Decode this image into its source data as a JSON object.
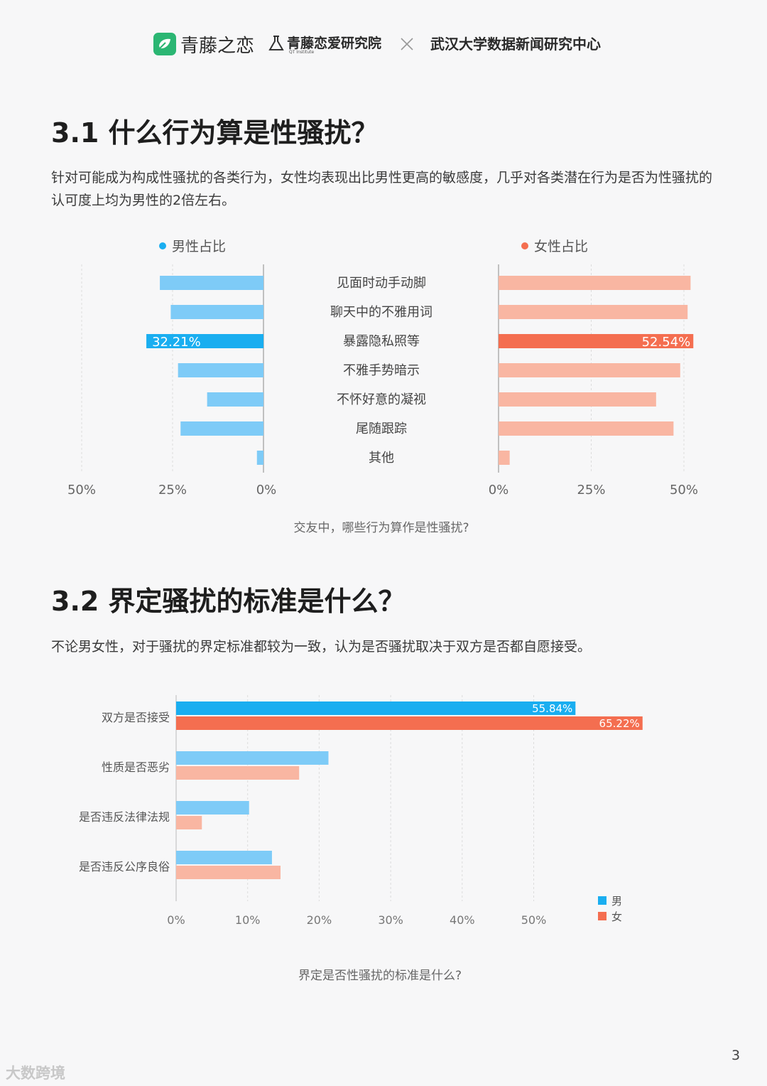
{
  "header": {
    "brand1": "青藤之恋",
    "brand2": "青藤恋爱研究院",
    "brand2_sub": "QT Institute",
    "separator": "×",
    "brand3": "武汉大学数据新闻研究中心"
  },
  "section1": {
    "title": "3.1  什么行为算是性骚扰？",
    "description": "针对可能成为构成性骚扰的各类行为，女性均表现出比男性更高的敏感度，几乎对各类潜在行为是否为性骚扰的认可度上均为男性的2倍左右。"
  },
  "section2": {
    "title": "3.2  界定骚扰的标准是什么？",
    "description": "不论男女性，对于骚扰的界定标准都较为一致，认为是否骚扰取决于双方是否都自愿接受。"
  },
  "colors": {
    "male_light": "#7ecbf7",
    "male_strong": "#1aaef0",
    "female_light": "#f9b6a2",
    "female_strong": "#f46e50"
  },
  "chart_data": [
    {
      "type": "bar",
      "orientation": "butterfly",
      "caption": "交友中，哪些行为算作是性骚扰?",
      "categories": [
        "见面时动手动脚",
        "聊天中的不雅用词",
        "暴露隐私照等",
        "不雅手势暗示",
        "不怀好意的凝视",
        "尾随跟踪",
        "其他"
      ],
      "series": [
        {
          "name": "男性占比",
          "values": [
            28.5,
            25.5,
            32.21,
            23.5,
            15.5,
            22.8,
            1.8
          ]
        },
        {
          "name": "女性占比",
          "values": [
            51.8,
            51.0,
            52.54,
            49.0,
            42.5,
            47.2,
            3.0
          ]
        }
      ],
      "data_labels": [
        {
          "series": "男性占比",
          "category": "暴露隐私照等",
          "text": "32.21%"
        },
        {
          "series": "女性占比",
          "category": "暴露隐私照等",
          "text": "52.54%"
        }
      ],
      "left_ticks": [
        "50%",
        "25%",
        "0%"
      ],
      "right_ticks": [
        "0%",
        "25%",
        "50%"
      ],
      "xlim": [
        0,
        50
      ],
      "highlight_category": "暴露隐私照等"
    },
    {
      "type": "bar",
      "orientation": "horizontal",
      "caption": "界定是否性骚扰的标准是什么?",
      "categories": [
        "双方是否接受",
        "性质是否恶劣",
        "是否违反法律法规",
        "是否违反公序良俗"
      ],
      "series": [
        {
          "name": "男",
          "values": [
            55.84,
            21.3,
            10.2,
            13.4
          ]
        },
        {
          "name": "女",
          "values": [
            65.22,
            17.2,
            3.6,
            14.6
          ]
        }
      ],
      "data_labels": [
        {
          "series": "男",
          "category": "双方是否接受",
          "text": "55.84%"
        },
        {
          "series": "女",
          "category": "双方是否接受",
          "text": "65.22%"
        }
      ],
      "x_ticks": [
        "0%",
        "10%",
        "20%",
        "30%",
        "40%",
        "50%"
      ],
      "xlim": [
        0,
        65
      ],
      "legend_position": "bottom-right",
      "highlight_category": "双方是否接受"
    }
  ],
  "page_number": "3",
  "watermark": "大数跨境"
}
